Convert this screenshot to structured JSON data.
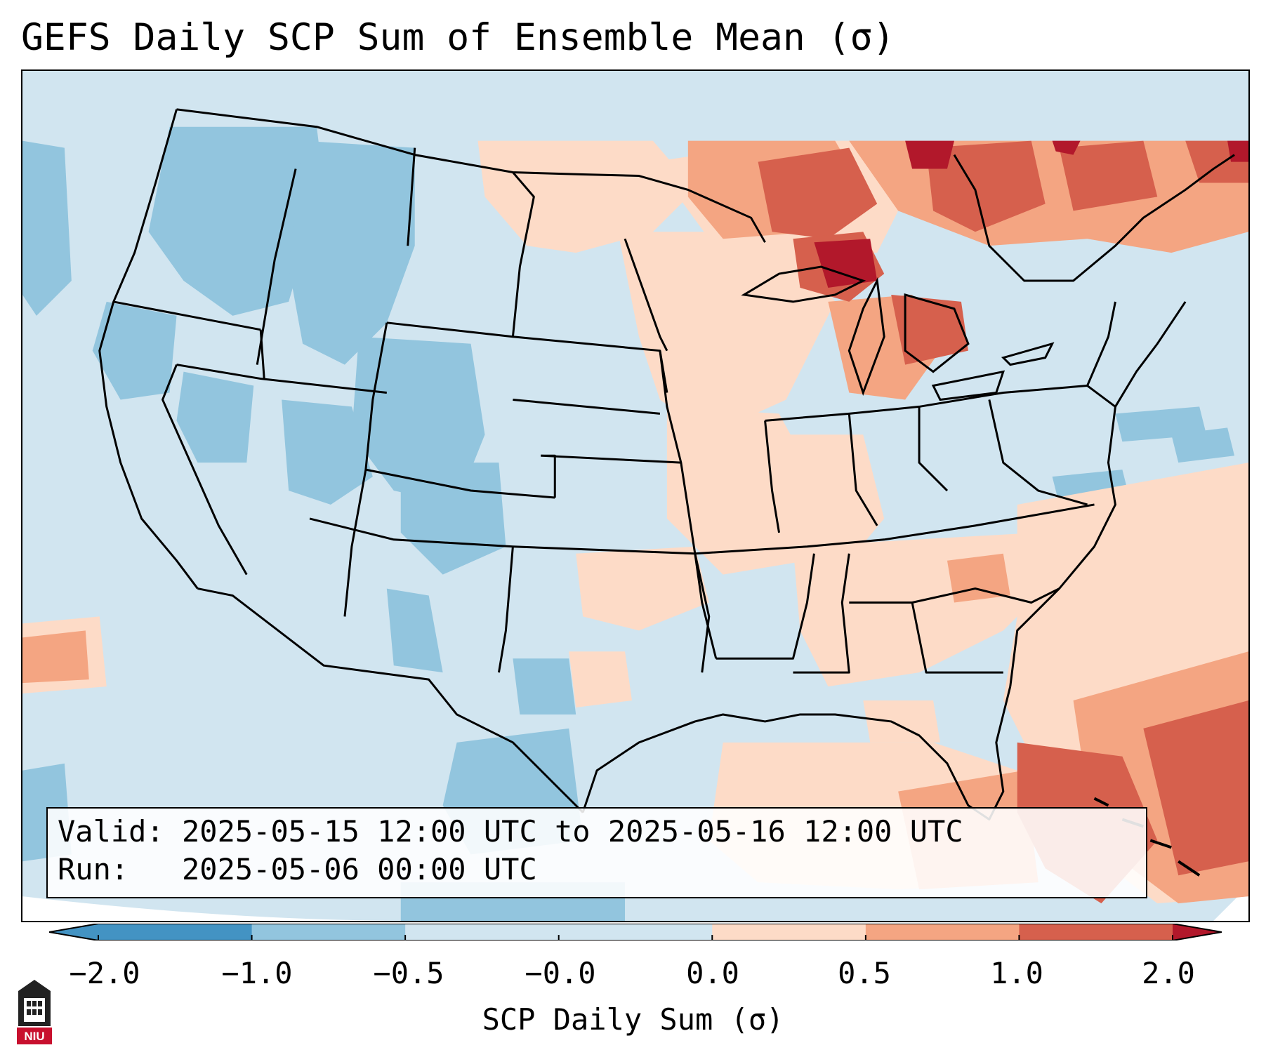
{
  "title": "GEFS Daily SCP Sum of Ensemble Mean (σ)",
  "info": {
    "valid_label": "Valid:",
    "valid_value": "2025-05-15 12:00 UTC to 2025-05-16 12:00 UTC",
    "run_label": "Run:",
    "run_value": "2025-05-06 00:00 UTC"
  },
  "colorbar": {
    "label": "SCP Daily Sum (σ)",
    "ticks": [
      "−2.0",
      "−1.0",
      "−0.5",
      "−0.0",
      "0.0",
      "0.5",
      "1.0",
      "2.0"
    ],
    "colors": {
      "below_-1.0": "#4393c3",
      "-1.0_to_-0.5": "#92c5de",
      "-0.5_to_0": "#d1e5f0",
      "0_to_0.5": "#fddbc7",
      "0.5_to_1.0": "#f4a582",
      "1.0_to_2.0": "#d6604d",
      "above_2.0": "#b2182b"
    }
  },
  "logo": {
    "text": "NIU",
    "icon": "university-tower-icon",
    "color": "#c8102e"
  }
}
